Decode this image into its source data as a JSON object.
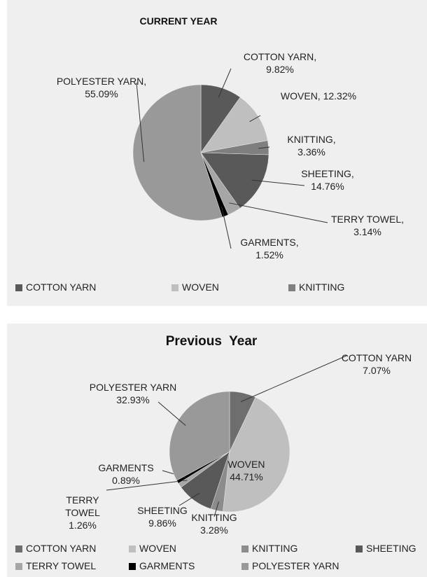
{
  "chart_data": [
    {
      "type": "pie",
      "title": "CURRENT YEAR",
      "categories": [
        "COTTON YARN",
        "WOVEN",
        "KNITTING",
        "SHEETING",
        "TERRY TOWEL",
        "GARMENTS",
        "POLYESTER YARN"
      ],
      "values": [
        9.82,
        12.32,
        3.36,
        14.76,
        3.14,
        1.52,
        55.09
      ],
      "value_labels": [
        "COTTON YARN, 9.82%",
        "WOVEN, 12.32%",
        "KNITTING, 3.36%",
        "SHEETING, 14.76%",
        "TERRY TOWEL, 3.14%",
        "GARMENTS, 1.52%",
        "POLYESTER YARN, 55.09%"
      ],
      "colors": [
        "#595959",
        "#bfbfbf",
        "#7f7f7f",
        "#595959",
        "#a6a6a6",
        "#000000",
        "#999999"
      ],
      "legend": [
        "COTTON YARN",
        "WOVEN",
        "KNITTING"
      ]
    },
    {
      "type": "pie",
      "title": "Previous  Year",
      "categories": [
        "COTTON YARN",
        "WOVEN",
        "KNITTING",
        "SHEETING",
        "TERRY TOWEL",
        "GARMENTS",
        "POLYESTER YARN"
      ],
      "values": [
        7.07,
        44.71,
        3.28,
        9.86,
        1.26,
        0.89,
        32.93
      ],
      "value_labels": [
        "COTTON YARN 7.07%",
        "WOVEN 44.71%",
        "KNITTING 3.28%",
        "SHEETING 9.86%",
        "TERRY TOWEL 1.26%",
        "GARMENTS 0.89%",
        "POLYESTER YARN 32.93%"
      ],
      "colors": [
        "#6e6e6e",
        "#bfbfbf",
        "#8c8c8c",
        "#595959",
        "#a6a6a6",
        "#000000",
        "#999999"
      ],
      "legend": [
        "COTTON YARN",
        "WOVEN",
        "KNITTING",
        "SHEETING",
        "TERRY TOWEL",
        "GARMENTS",
        "POLYESTER YARN"
      ]
    }
  ]
}
